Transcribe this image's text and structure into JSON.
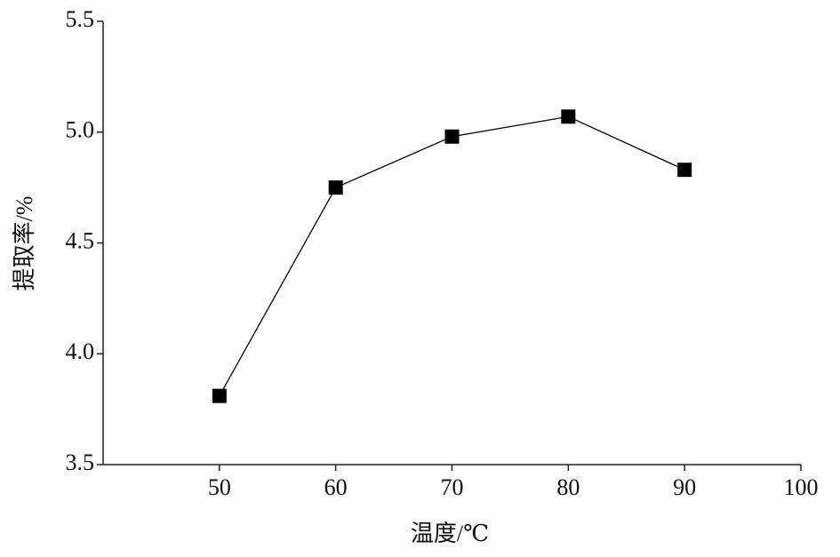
{
  "chart_data": {
    "type": "line",
    "x_label": "温度/℃",
    "y_label": "提取率/%",
    "x": [
      50,
      60,
      70,
      80,
      90
    ],
    "values": [
      3.81,
      4.75,
      4.98,
      5.07,
      4.83
    ],
    "color": "#000000",
    "marker": "square",
    "xlim": [
      40,
      100
    ],
    "xticks": [
      50,
      60,
      70,
      80,
      90,
      100
    ],
    "ylim": [
      3.5,
      5.5
    ],
    "yticks": [
      {
        "value": 3.5,
        "label": "3.5"
      },
      {
        "value": 4,
        "label": "4.0"
      },
      {
        "value": 4.5,
        "label": "4.5"
      },
      {
        "value": 5,
        "label": "5.0"
      },
      {
        "value": 5.5,
        "label": "5.5"
      }
    ],
    "grid": false
  }
}
